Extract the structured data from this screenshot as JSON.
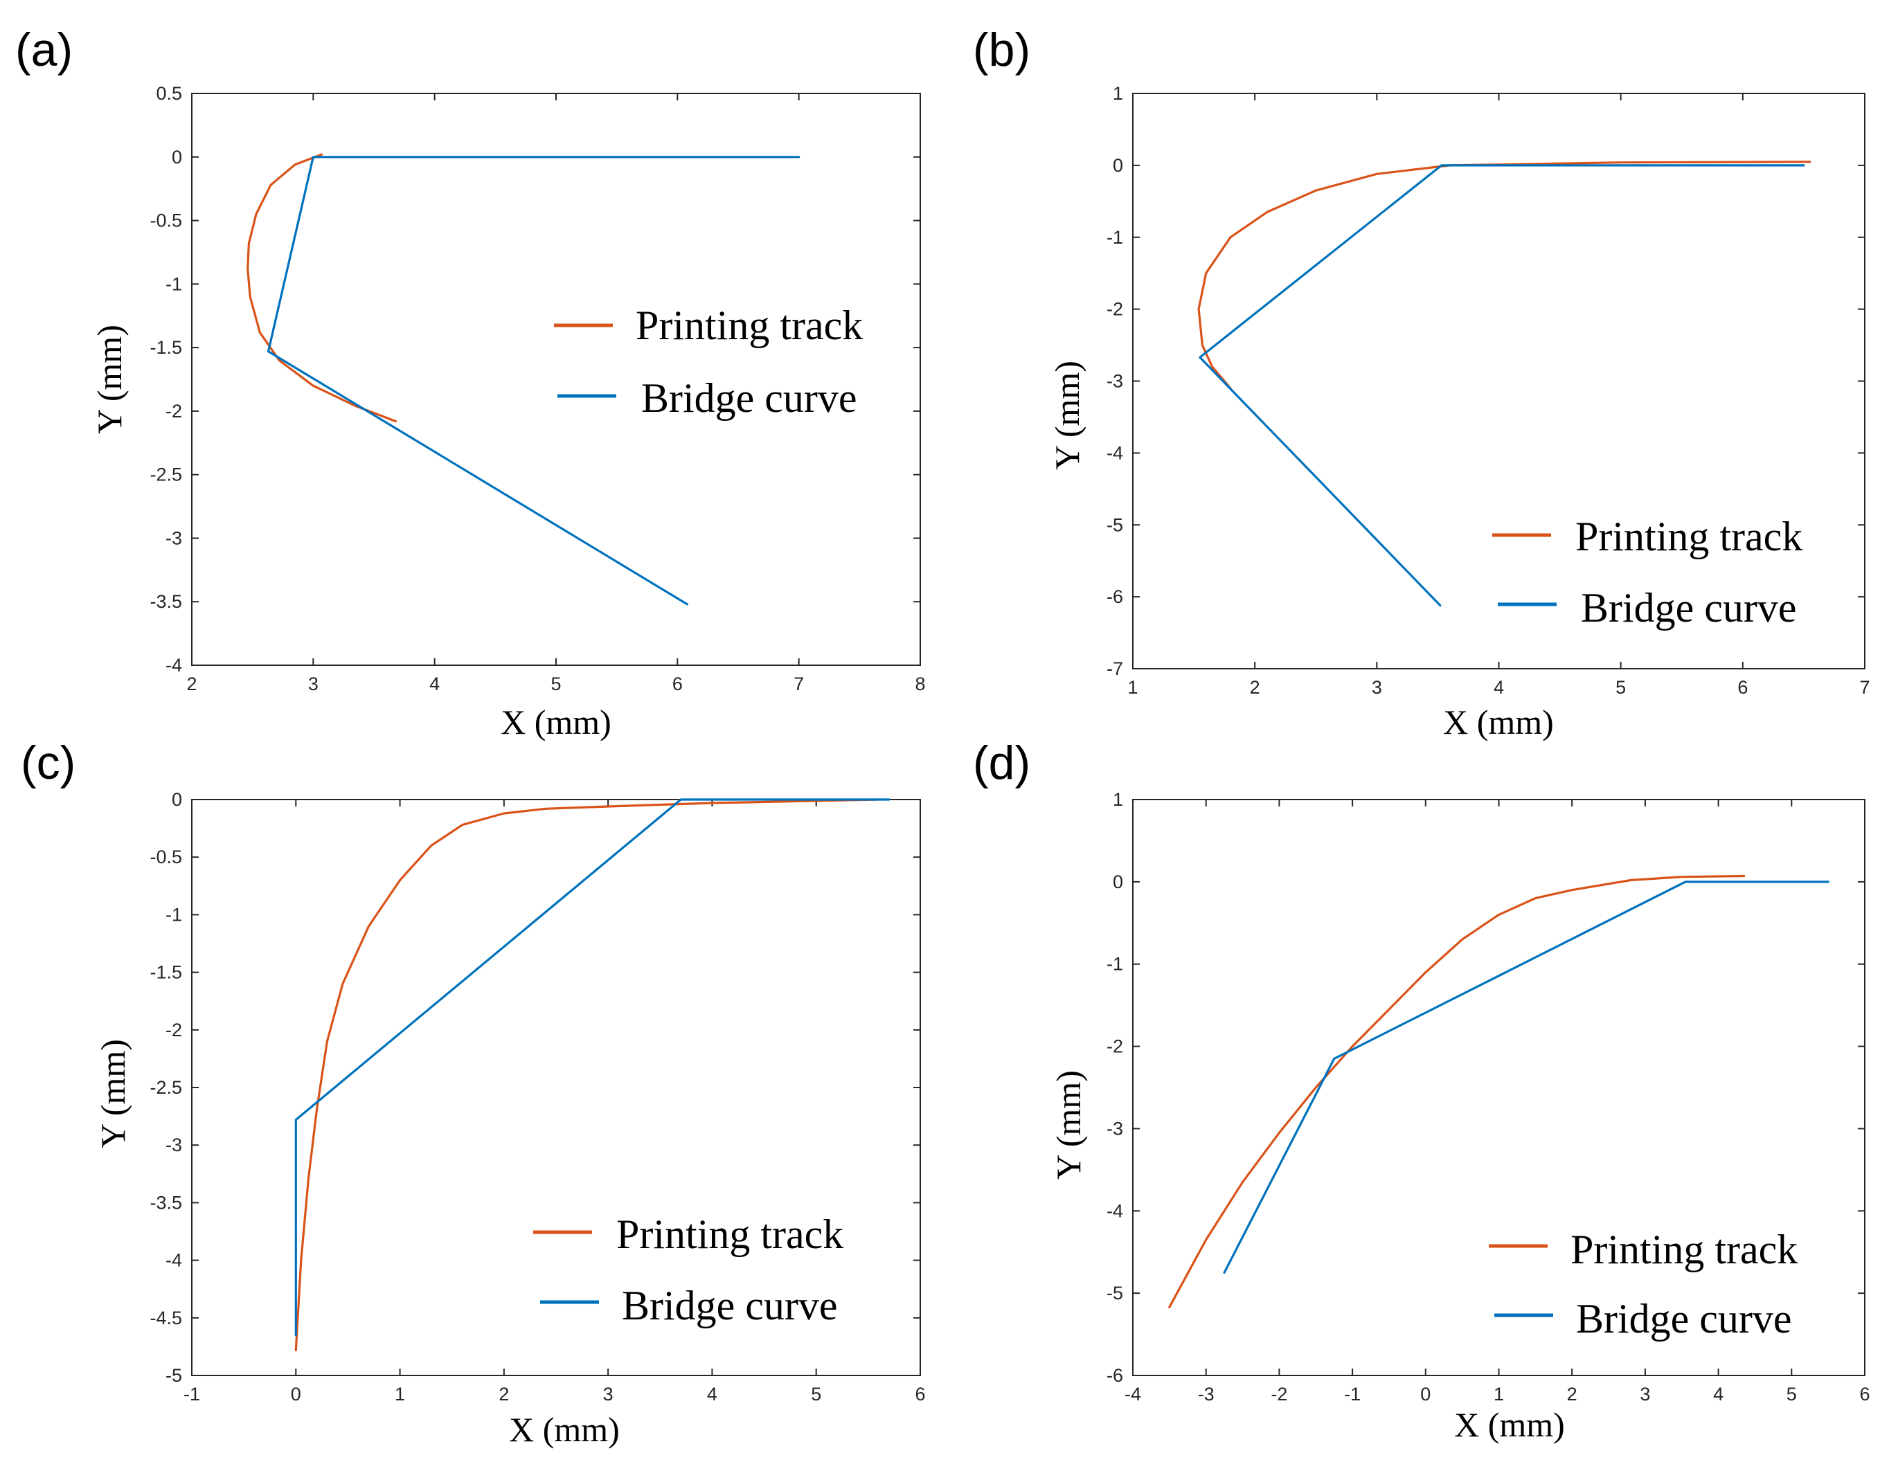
{
  "colors": {
    "printing_track": "#D95319",
    "bridge_curve": "#0072BD"
  },
  "chart_data": [
    {
      "type": "line",
      "panel_label": "(a)",
      "xlabel": "X (mm)",
      "ylabel": "Y (mm)",
      "xlim": [
        2,
        8
      ],
      "ylim": [
        -4,
        0.5
      ],
      "xticks": [
        2,
        3,
        4,
        5,
        6,
        7,
        8
      ],
      "xtick_labels": [
        "2",
        "3",
        "4",
        "5",
        "6",
        "7",
        "8"
      ],
      "yticks": [
        0.5,
        0,
        -0.5,
        -1,
        -1.5,
        -2,
        -2.5,
        -3,
        -3.5,
        -4
      ],
      "ytick_labels": [
        "0.5",
        "0",
        "-0.5",
        "-1",
        "-1.5",
        "-2",
        "-2.5",
        "-3",
        "-3.5",
        "-4"
      ],
      "legend_position": "right",
      "series": [
        {
          "name": "Printing track",
          "color": "#D95319",
          "x": [
            3.07,
            2.85,
            2.65,
            2.53,
            2.47,
            2.46,
            2.48,
            2.56,
            2.72,
            3.0,
            3.35,
            3.68
          ],
          "y": [
            0.02,
            -0.06,
            -0.22,
            -0.45,
            -0.68,
            -0.88,
            -1.1,
            -1.38,
            -1.6,
            -1.8,
            -1.96,
            -2.08
          ]
        },
        {
          "name": "Bridge curve",
          "color": "#0072BD",
          "x": [
            7.0,
            3.0,
            2.63,
            6.08
          ],
          "y": [
            0.0,
            0.0,
            -1.53,
            -3.52
          ]
        }
      ]
    },
    {
      "type": "line",
      "panel_label": "(b)",
      "xlabel": "X (mm)",
      "ylabel": "Y (mm)",
      "xlim": [
        1,
        7
      ],
      "ylim": [
        -7,
        1
      ],
      "xticks": [
        1,
        2,
        3,
        4,
        5,
        6,
        7
      ],
      "xtick_labels": [
        "1",
        "2",
        "3",
        "4",
        "5",
        "6",
        "7"
      ],
      "yticks": [
        1,
        0,
        -1,
        -2,
        -3,
        -4,
        -5,
        -6,
        -7
      ],
      "ytick_labels": [
        "1",
        "0",
        "-1",
        "-2",
        "-3",
        "-4",
        "-5",
        "-6",
        "-7"
      ],
      "legend_position": "lower-right",
      "series": [
        {
          "name": "Printing track",
          "color": "#D95319",
          "x": [
            6.55,
            5.0,
            3.6,
            3.0,
            2.5,
            2.1,
            1.8,
            1.6,
            1.54,
            1.57,
            1.65,
            1.8
          ],
          "y": [
            0.05,
            0.04,
            0.0,
            -0.12,
            -0.35,
            -0.65,
            -1.0,
            -1.5,
            -2.0,
            -2.5,
            -2.8,
            -3.1
          ]
        },
        {
          "name": "Bridge curve",
          "color": "#0072BD",
          "x": [
            6.5,
            3.53,
            1.55,
            3.52
          ],
          "y": [
            0.0,
            0.0,
            -2.67,
            -6.12
          ]
        }
      ]
    },
    {
      "type": "line",
      "panel_label": "(c)",
      "xlabel": "X (mm)",
      "ylabel": "Y (mm)",
      "xlim": [
        -1,
        6
      ],
      "ylim": [
        -5,
        0
      ],
      "xticks": [
        -1,
        0,
        1,
        2,
        3,
        4,
        5,
        6
      ],
      "xtick_labels": [
        "-1",
        "0",
        "1",
        "2",
        "3",
        "4",
        "5",
        "6"
      ],
      "yticks": [
        0,
        -0.5,
        -1,
        -1.5,
        -2,
        -2.5,
        -3,
        -3.5,
        -4,
        -4.5,
        -5
      ],
      "ytick_labels": [
        "0",
        "-0.5",
        "-1",
        "-1.5",
        "-2",
        "-2.5",
        "-3",
        "-3.5",
        "-4",
        "-4.5",
        "-5"
      ],
      "legend_position": "lower-right",
      "series": [
        {
          "name": "Printing track",
          "color": "#D95319",
          "x": [
            5.6,
            4.0,
            3.0,
            2.4,
            2.0,
            1.6,
            1.3,
            1.0,
            0.7,
            0.45,
            0.3,
            0.2,
            0.12,
            0.05,
            0.0
          ],
          "y": [
            0.0,
            -0.03,
            -0.06,
            -0.08,
            -0.12,
            -0.22,
            -0.4,
            -0.7,
            -1.1,
            -1.6,
            -2.1,
            -2.7,
            -3.3,
            -4.0,
            -4.78
          ]
        },
        {
          "name": "Bridge curve",
          "color": "#0072BD",
          "x": [
            5.7,
            3.7,
            0.0,
            0.0
          ],
          "y": [
            0.0,
            0.0,
            -2.78,
            -4.65
          ]
        }
      ]
    },
    {
      "type": "line",
      "panel_label": "(d)",
      "xlabel": "X (mm)",
      "ylabel": "Y (mm)",
      "xlim": [
        -4,
        6
      ],
      "ylim": [
        -6,
        1
      ],
      "xticks": [
        -4,
        -3,
        -2,
        -1,
        0,
        1,
        2,
        3,
        4,
        5,
        6
      ],
      "xtick_labels": [
        "-4",
        "-3",
        "-2",
        "-1",
        "0",
        "1",
        "2",
        "3",
        "4",
        "5",
        "6"
      ],
      "yticks": [
        1,
        0,
        -1,
        -2,
        -3,
        -4,
        -5,
        -6
      ],
      "ytick_labels": [
        "1",
        "0",
        "-1",
        "-2",
        "-3",
        "-4",
        "-5",
        "-6"
      ],
      "legend_position": "lower-right",
      "series": [
        {
          "name": "Printing track",
          "color": "#D95319",
          "x": [
            4.35,
            3.5,
            2.8,
            2.0,
            1.5,
            1.0,
            0.5,
            0.0,
            -0.5,
            -1.0,
            -1.5,
            -2.0,
            -2.5,
            -3.0,
            -3.5
          ],
          "y": [
            0.07,
            0.06,
            0.02,
            -0.1,
            -0.2,
            -0.4,
            -0.7,
            -1.1,
            -1.55,
            -2.0,
            -2.5,
            -3.05,
            -3.65,
            -4.35,
            -5.17
          ]
        },
        {
          "name": "Bridge curve",
          "color": "#0072BD",
          "x": [
            5.5,
            3.55,
            -1.25,
            -2.75
          ],
          "y": [
            0.0,
            0.0,
            -2.15,
            -4.75
          ]
        }
      ]
    }
  ]
}
